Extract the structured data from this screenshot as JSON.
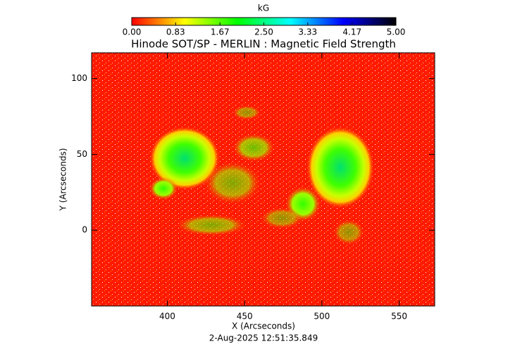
{
  "chart_data": {
    "type": "image",
    "title": "Hinode SOT/SP - MERLIN : Magnetic Field Strength",
    "x_label": "X (Arcseconds)",
    "y_label": "Y (Arcseconds)",
    "timestamp": "2-Aug-2025 12:51:35.849",
    "xlim": [
      351,
      573
    ],
    "ylim": [
      -50,
      117
    ],
    "xticks": [
      400,
      450,
      500,
      550
    ],
    "yticks": [
      0,
      50,
      100
    ],
    "colorbar": {
      "label": "kG",
      "clim": [
        0,
        5
      ],
      "colors": [
        "#ff0000",
        "#ffff00",
        "#00ff00",
        "#00ffff",
        "#0000ff",
        "#000000"
      ],
      "ticks": [
        {
          "value": 0,
          "label": "0.00"
        },
        0.83,
        1.67,
        {
          "value": 2.5,
          "label": "2.50"
        },
        3.33,
        4.17,
        {
          "value": 5,
          "label": "5.00"
        }
      ]
    }
  }
}
